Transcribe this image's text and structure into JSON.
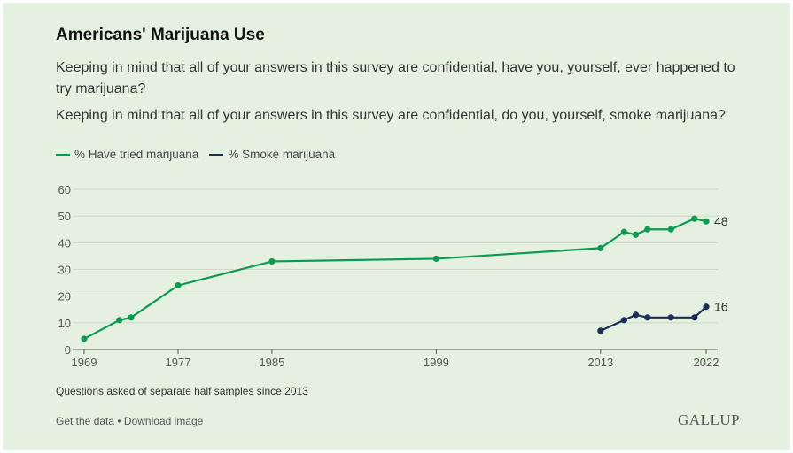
{
  "title": "Americans' Marijuana Use",
  "question1": "Keeping in mind that all of your answers in this survey are confidential, have you, yourself, ever happened to try marijuana?",
  "question2": "Keeping in mind that all of your answers in this survey are confidential, do you, yourself, smoke marijuana?",
  "note": "Questions asked of separate half samples since 2013",
  "links": {
    "get_data": "Get the data",
    "sep": " • ",
    "download": "Download image"
  },
  "logo": "GALLUP",
  "chart_data": {
    "type": "line",
    "title": "Americans' Marijuana Use",
    "xlim": [
      1969,
      2022
    ],
    "ylim": [
      0,
      60
    ],
    "xticks": [
      1969,
      1977,
      1985,
      1999,
      2013,
      2022
    ],
    "yticks": [
      0,
      10,
      20,
      30,
      40,
      50,
      60
    ],
    "grid": true,
    "legend": "top-left",
    "series": [
      {
        "name": "% Have tried marijuana",
        "color": "#0d9a50",
        "x": [
          1969,
          1972,
          1973,
          1977,
          1985,
          1999,
          2013,
          2015,
          2016,
          2017,
          2019,
          2021,
          2022
        ],
        "values": [
          4,
          11,
          12,
          24,
          33,
          34,
          38,
          44,
          43,
          45,
          45,
          49,
          48
        ],
        "end_label": "48"
      },
      {
        "name": "% Smoke marijuana",
        "color": "#1b2f58",
        "x": [
          2013,
          2015,
          2016,
          2017,
          2019,
          2021,
          2022
        ],
        "values": [
          7,
          11,
          13,
          12,
          12,
          12,
          16
        ],
        "end_label": "16"
      }
    ]
  }
}
